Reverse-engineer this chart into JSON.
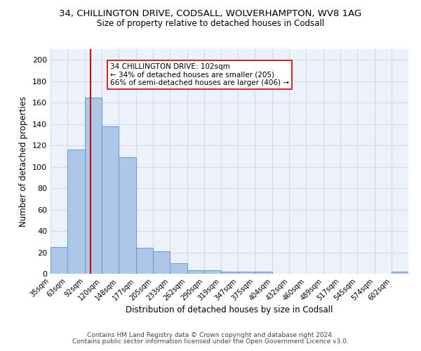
{
  "title": "34, CHILLINGTON DRIVE, CODSALL, WOLVERHAMPTON, WV8 1AG",
  "subtitle": "Size of property relative to detached houses in Codsall",
  "xlabel": "Distribution of detached houses by size in Codsall",
  "ylabel": "Number of detached properties",
  "bin_labels": [
    "35sqm",
    "63sqm",
    "92sqm",
    "120sqm",
    "148sqm",
    "177sqm",
    "205sqm",
    "233sqm",
    "262sqm",
    "290sqm",
    "319sqm",
    "347sqm",
    "375sqm",
    "404sqm",
    "432sqm",
    "460sqm",
    "489sqm",
    "517sqm",
    "545sqm",
    "574sqm",
    "602sqm"
  ],
  "bin_edges": [
    35,
    63,
    92,
    120,
    148,
    177,
    205,
    233,
    262,
    290,
    319,
    347,
    375,
    404,
    432,
    460,
    489,
    517,
    545,
    574,
    602
  ],
  "bar_heights": [
    25,
    116,
    165,
    138,
    109,
    24,
    21,
    10,
    3,
    3,
    2,
    2,
    2,
    0,
    0,
    0,
    0,
    0,
    0,
    0,
    2
  ],
  "bar_color": "#aec6e8",
  "bar_edge_color": "#5b9bd5",
  "grid_color": "#d0d8e8",
  "bg_color": "#edf2fa",
  "property_line_x": 102,
  "property_line_color": "#cc0000",
  "annotation_line1": "34 CHILLINGTON DRIVE: 102sqm",
  "annotation_line2": "← 34% of detached houses are smaller (205)",
  "annotation_line3": "66% of semi-detached houses are larger (406) →",
  "ylim": [
    0,
    210
  ],
  "yticks": [
    0,
    20,
    40,
    60,
    80,
    100,
    120,
    140,
    160,
    180,
    200
  ],
  "footer1": "Contains HM Land Registry data © Crown copyright and database right 2024.",
  "footer2": "Contains public sector information licensed under the Open Government Licence v3.0."
}
